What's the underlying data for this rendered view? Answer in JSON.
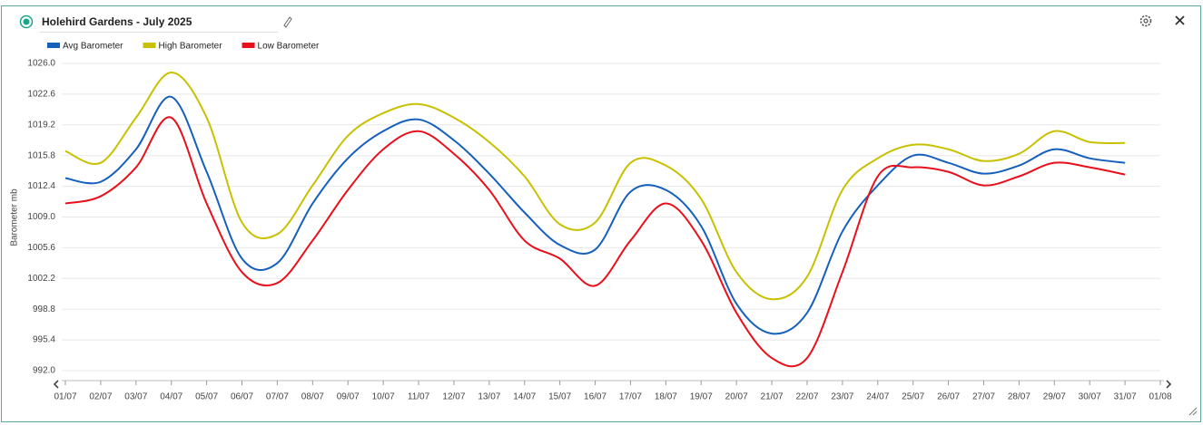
{
  "chart_data": {
    "type": "line",
    "title": "Holehird Gardens - July 2025",
    "y_label": "Barometer mb",
    "categories": [
      "01/07",
      "02/07",
      "03/07",
      "04/07",
      "05/07",
      "06/07",
      "07/07",
      "08/07",
      "09/07",
      "10/07",
      "11/07",
      "12/07",
      "13/07",
      "14/07",
      "15/07",
      "16/07",
      "17/07",
      "18/07",
      "19/07",
      "20/07",
      "21/07",
      "22/07",
      "23/07",
      "24/07",
      "25/07",
      "26/07",
      "27/07",
      "28/07",
      "29/07",
      "30/07",
      "31/07",
      "01/08"
    ],
    "series": [
      {
        "name": "Avg Barometer",
        "color": "#1560bd",
        "values": [
          1013.3,
          1012.9,
          1016.5,
          1022.3,
          1014.0,
          1004.4,
          1003.9,
          1010.5,
          1015.5,
          1018.5,
          1019.8,
          1017.5,
          1013.8,
          1009.5,
          1005.9,
          1005.4,
          1011.8,
          1012.0,
          1008.0,
          999.4,
          996.1,
          998.4,
          1007.4,
          1012.5,
          1015.8,
          1015.0,
          1013.8,
          1014.7,
          1016.5,
          1015.5,
          1015.0,
          null
        ]
      },
      {
        "name": "High Barometer",
        "color": "#c8c000",
        "values": [
          1016.3,
          1015.0,
          1020.0,
          1025.0,
          1020.0,
          1008.4,
          1007.1,
          1012.5,
          1018.0,
          1020.5,
          1021.5,
          1020.0,
          1017.3,
          1013.5,
          1008.2,
          1008.4,
          1015.0,
          1014.7,
          1011.0,
          1002.9,
          999.9,
          1002.4,
          1012.0,
          1015.5,
          1017.0,
          1016.5,
          1015.2,
          1016.0,
          1018.5,
          1017.3,
          1017.2,
          null
        ]
      },
      {
        "name": "Low Barometer",
        "color": "#e8101a",
        "values": [
          1010.5,
          1011.3,
          1014.5,
          1020.0,
          1010.5,
          1002.9,
          1001.7,
          1006.4,
          1012.0,
          1016.5,
          1018.5,
          1016.0,
          1012.0,
          1006.4,
          1004.4,
          1001.4,
          1006.4,
          1010.5,
          1006.4,
          998.4,
          993.4,
          993.4,
          1002.9,
          1013.5,
          1014.5,
          1014.0,
          1012.5,
          1013.5,
          1015.0,
          1014.5,
          1013.7,
          null
        ]
      }
    ],
    "ylim": [
      992.0,
      1026.0
    ],
    "yticks": [
      {
        "value": 992.0,
        "label": "992.0"
      },
      {
        "value": 995.4,
        "label": "995.4"
      },
      {
        "value": 998.8,
        "label": "998.8"
      },
      {
        "value": 1002.2,
        "label": "1002.2"
      },
      {
        "value": 1005.6,
        "label": "1005.6"
      },
      {
        "value": 1009.0,
        "label": "1009.0"
      },
      {
        "value": 1012.4,
        "label": "1012.4"
      },
      {
        "value": 1015.8,
        "label": "1015.8"
      },
      {
        "value": 1019.2,
        "label": "1019.2"
      },
      {
        "value": 1022.6,
        "label": "1022.6"
      },
      {
        "value": 1026.0,
        "label": "1026.0"
      }
    ],
    "grid": true,
    "legend": "top-left"
  }
}
